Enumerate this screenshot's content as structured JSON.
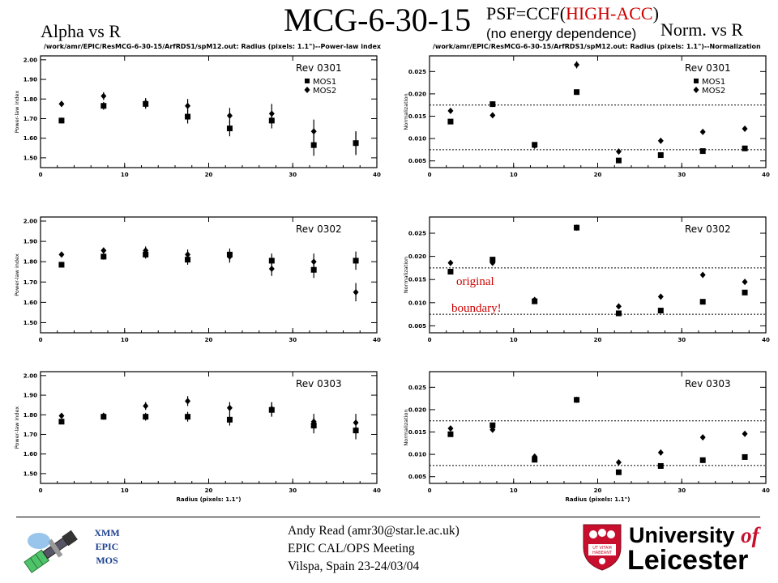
{
  "header": {
    "title": "MCG-6-30-15",
    "psf_prefix": "PSF=CCF(",
    "psf_highlight": "HIGH-ACC",
    "psf_suffix": ")",
    "subtitle": "(no energy dependence)",
    "left_label": "Alpha vs R",
    "right_label": "Norm. vs R"
  },
  "annotation": {
    "line1": "original",
    "line2": "boundary!"
  },
  "footer": {
    "logo_left_lines": [
      "XMM",
      "EPIC",
      "MOS"
    ],
    "author": "Andy Read (amr30@star.le.ac.uk)",
    "meeting": "EPIC CAL/OPS Meeting",
    "location": "Vilspa, Spain 23-24/03/04",
    "university_line1": "University",
    "university_of": "of",
    "university_line2": "Leicester",
    "shield_motto": [
      "UT VITAM",
      "HABEANT"
    ]
  },
  "chart_data": [
    {
      "type": "scatter",
      "panel": "alpha-rev0301",
      "title": "/work/amr/EPIC/ResMCG-6-30-15/ArfRDS1/spM12.out: Radius (pixels: 1.1\")--Power-law index",
      "ylabel": "Power-law index",
      "xlabel": "",
      "xlim": [
        0,
        40
      ],
      "ylim": [
        1.45,
        2.02
      ],
      "xticks": [
        "0",
        "10",
        "20",
        "30",
        "40"
      ],
      "yticks": [
        "1.50",
        "1.60",
        "1.70",
        "1.80",
        "1.90",
        "2.00"
      ],
      "rev": "Rev 0301",
      "legend": [
        "MOS1",
        "MOS2"
      ],
      "x": [
        2.5,
        7.5,
        12.5,
        17.5,
        22.5,
        27.5,
        32.5,
        37.5
      ],
      "series": [
        {
          "name": "MOS1",
          "marker": "square",
          "values": [
            1.69,
            1.765,
            1.775,
            1.71,
            1.65,
            1.69,
            1.565,
            1.575
          ],
          "err": [
            0.015,
            0.02,
            0.025,
            0.035,
            0.04,
            0.04,
            0.055,
            0.06
          ]
        },
        {
          "name": "MOS2",
          "marker": "diamond",
          "values": [
            1.775,
            1.815,
            1.78,
            1.765,
            1.715,
            1.725,
            1.635,
            1.575
          ],
          "err": [
            0.015,
            0.02,
            0.025,
            0.035,
            0.04,
            0.05,
            0.06,
            0.06
          ]
        }
      ]
    },
    {
      "type": "scatter",
      "panel": "norm-rev0301",
      "title": "/work/amr/EPIC/ResMCG-6-30-15/ArfRDS1/spM12.out: Radius (pixels: 1.1\")--Normalization",
      "ylabel": "Normalization",
      "xlabel": "",
      "xlim": [
        0,
        40
      ],
      "ylim": [
        0.0035,
        0.0285
      ],
      "xticks": [
        "0",
        "10",
        "20",
        "30",
        "40"
      ],
      "yticks": [
        "0.005",
        "0.010",
        "0.015",
        "0.020",
        "0.025"
      ],
      "rev": "Rev 0301",
      "legend": [
        "MOS1",
        "MOS2"
      ],
      "hlines": [
        0.0175,
        0.0075
      ],
      "x": [
        2.5,
        7.5,
        12.5,
        17.5,
        22.5,
        27.5,
        32.5,
        37.5
      ],
      "series": [
        {
          "name": "MOS1",
          "marker": "square",
          "values": [
            0.0138,
            0.0177,
            0.0086,
            0.0204,
            0.0051,
            0.0063,
            0.0072,
            0.0078
          ],
          "err": [
            0.0002,
            0.0002,
            0.0002,
            0.0005,
            0.0002,
            0.0002,
            0.0002,
            0.0002
          ]
        },
        {
          "name": "MOS2",
          "marker": "diamond",
          "values": [
            0.0162,
            0.0152,
            0.0084,
            0.0265,
            0.0071,
            0.0095,
            0.0115,
            0.0122
          ],
          "err": [
            0.0002,
            0.0002,
            0.0002,
            0.0008,
            0.0003,
            0.0004,
            0.0005,
            0.0006
          ]
        }
      ]
    },
    {
      "type": "scatter",
      "panel": "alpha-rev0302",
      "title": "",
      "ylabel": "Power-law index",
      "xlabel": "",
      "xlim": [
        0,
        40
      ],
      "ylim": [
        1.45,
        2.02
      ],
      "xticks": [
        "0",
        "10",
        "20",
        "30",
        "40"
      ],
      "yticks": [
        "1.50",
        "1.60",
        "1.70",
        "1.80",
        "1.90",
        "2.00"
      ],
      "rev": "Rev 0302",
      "legend": [],
      "x": [
        2.5,
        7.5,
        12.5,
        17.5,
        22.5,
        27.5,
        32.5,
        37.5
      ],
      "series": [
        {
          "name": "MOS1",
          "marker": "square",
          "values": [
            1.785,
            1.825,
            1.835,
            1.81,
            1.835,
            1.805,
            1.76,
            1.805
          ],
          "err": [
            0.012,
            0.015,
            0.02,
            0.025,
            0.03,
            0.035,
            0.04,
            0.045
          ]
        },
        {
          "name": "MOS2",
          "marker": "diamond",
          "values": [
            1.835,
            1.855,
            1.855,
            1.835,
            1.825,
            1.765,
            1.8,
            1.65
          ],
          "err": [
            0.012,
            0.015,
            0.02,
            0.025,
            0.03,
            0.035,
            0.04,
            0.045
          ]
        }
      ]
    },
    {
      "type": "scatter",
      "panel": "norm-rev0302",
      "title": "",
      "ylabel": "Normalization",
      "xlabel": "",
      "xlim": [
        0,
        40
      ],
      "ylim": [
        0.0035,
        0.0285
      ],
      "xticks": [
        "0",
        "10",
        "20",
        "30",
        "40"
      ],
      "yticks": [
        "0.005",
        "0.010",
        "0.015",
        "0.020",
        "0.025"
      ],
      "rev": "Rev 0302",
      "legend": [],
      "hlines": [
        0.0175,
        0.0075
      ],
      "x": [
        2.5,
        7.5,
        12.5,
        17.5,
        22.5,
        27.5,
        32.5,
        37.5
      ],
      "series": [
        {
          "name": "MOS1",
          "marker": "square",
          "values": [
            0.0167,
            0.0193,
            0.0103,
            0.0262,
            0.0077,
            0.0083,
            0.0102,
            0.0122
          ],
          "err": [
            0.0002,
            0.0002,
            0.0002,
            0.0005,
            0.0002,
            0.0002,
            0.0002,
            0.0004
          ]
        },
        {
          "name": "MOS2",
          "marker": "diamond",
          "values": [
            0.0186,
            0.0186,
            0.0106,
            0.0262,
            0.0092,
            0.0113,
            0.016,
            0.0145
          ],
          "err": [
            0.0002,
            0.0002,
            0.0002,
            0.0005,
            0.0002,
            0.0003,
            0.0005,
            0.0006
          ]
        }
      ]
    },
    {
      "type": "scatter",
      "panel": "alpha-rev0303",
      "title": "",
      "ylabel": "Power-law index",
      "xlabel": "Radius (pixels: 1.1\")",
      "xlim": [
        0,
        40
      ],
      "ylim": [
        1.45,
        2.02
      ],
      "xticks": [
        "0",
        "10",
        "20",
        "30",
        "40"
      ],
      "yticks": [
        "1.50",
        "1.60",
        "1.70",
        "1.80",
        "1.90",
        "2.00"
      ],
      "rev": "Rev 0303",
      "legend": [],
      "x": [
        2.5,
        7.5,
        12.5,
        17.5,
        22.5,
        27.5,
        32.5,
        37.5
      ],
      "series": [
        {
          "name": "MOS1",
          "marker": "square",
          "values": [
            1.765,
            1.79,
            1.79,
            1.79,
            1.775,
            1.825,
            1.745,
            1.72
          ],
          "err": [
            0.012,
            0.015,
            0.02,
            0.025,
            0.03,
            0.035,
            0.04,
            0.045
          ]
        },
        {
          "name": "MOS2",
          "marker": "diamond",
          "values": [
            1.795,
            1.795,
            1.845,
            1.87,
            1.835,
            1.83,
            1.765,
            1.76
          ],
          "err": [
            0.012,
            0.015,
            0.02,
            0.025,
            0.03,
            0.035,
            0.04,
            0.045
          ]
        }
      ]
    },
    {
      "type": "scatter",
      "panel": "norm-rev0303",
      "title": "",
      "ylabel": "Normalization",
      "xlabel": "Radius (pixels: 1.1\")",
      "xlim": [
        0,
        40
      ],
      "ylim": [
        0.0035,
        0.0285
      ],
      "xticks": [
        "0",
        "10",
        "20",
        "30",
        "40"
      ],
      "yticks": [
        "0.005",
        "0.010",
        "0.015",
        "0.020",
        "0.025"
      ],
      "rev": "Rev 0303",
      "legend": [],
      "hlines": [
        0.0175,
        0.0075
      ],
      "x": [
        2.5,
        7.5,
        12.5,
        17.5,
        22.5,
        27.5,
        32.5,
        37.5
      ],
      "series": [
        {
          "name": "MOS1",
          "marker": "square",
          "values": [
            0.0145,
            0.0165,
            0.0088,
            0.0222,
            0.006,
            0.0074,
            0.0087,
            0.0094
          ],
          "err": [
            0.0002,
            0.0002,
            0.0002,
            0.0004,
            0.0002,
            0.0002,
            0.0002,
            0.0003
          ]
        },
        {
          "name": "MOS2",
          "marker": "diamond",
          "values": [
            0.0158,
            0.0155,
            0.0095,
            0.0222,
            0.0082,
            0.0104,
            0.0138,
            0.0146
          ],
          "err": [
            0.0002,
            0.0002,
            0.0002,
            0.0004,
            0.0002,
            0.0003,
            0.0005,
            0.0006
          ]
        }
      ]
    }
  ]
}
